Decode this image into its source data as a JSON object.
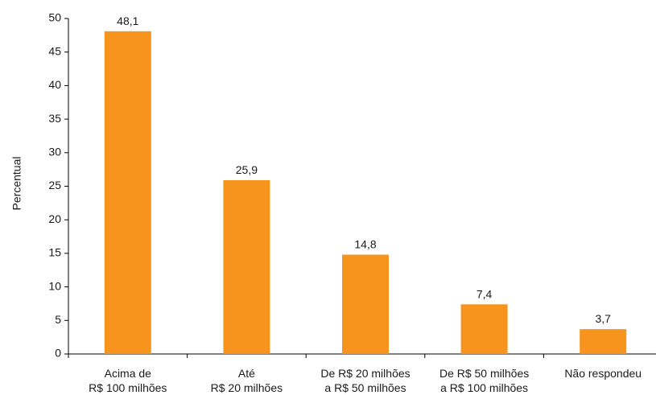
{
  "chart_data": {
    "type": "bar",
    "categories": [
      [
        "Acima de",
        "R$ 100 milhões"
      ],
      [
        "Até",
        "R$ 20 milhões"
      ],
      [
        "De R$ 20 milhões",
        "a R$ 50 milhões"
      ],
      [
        "De R$ 50 milhões",
        "a R$ 100 milhões"
      ],
      [
        "Não respondeu"
      ]
    ],
    "values": [
      48.1,
      25.9,
      14.8,
      7.4,
      3.7
    ],
    "data_labels": [
      "48,1",
      "25,9",
      "14,8",
      "7,4",
      "3,7"
    ],
    "title": "",
    "xlabel": "",
    "ylabel": "Percentual",
    "ylim": [
      0,
      50
    ],
    "yticks": [
      0,
      5,
      10,
      15,
      20,
      25,
      30,
      35,
      40,
      45,
      50
    ],
    "grid": false,
    "legend": "none",
    "bar_color": "#F7941D"
  }
}
